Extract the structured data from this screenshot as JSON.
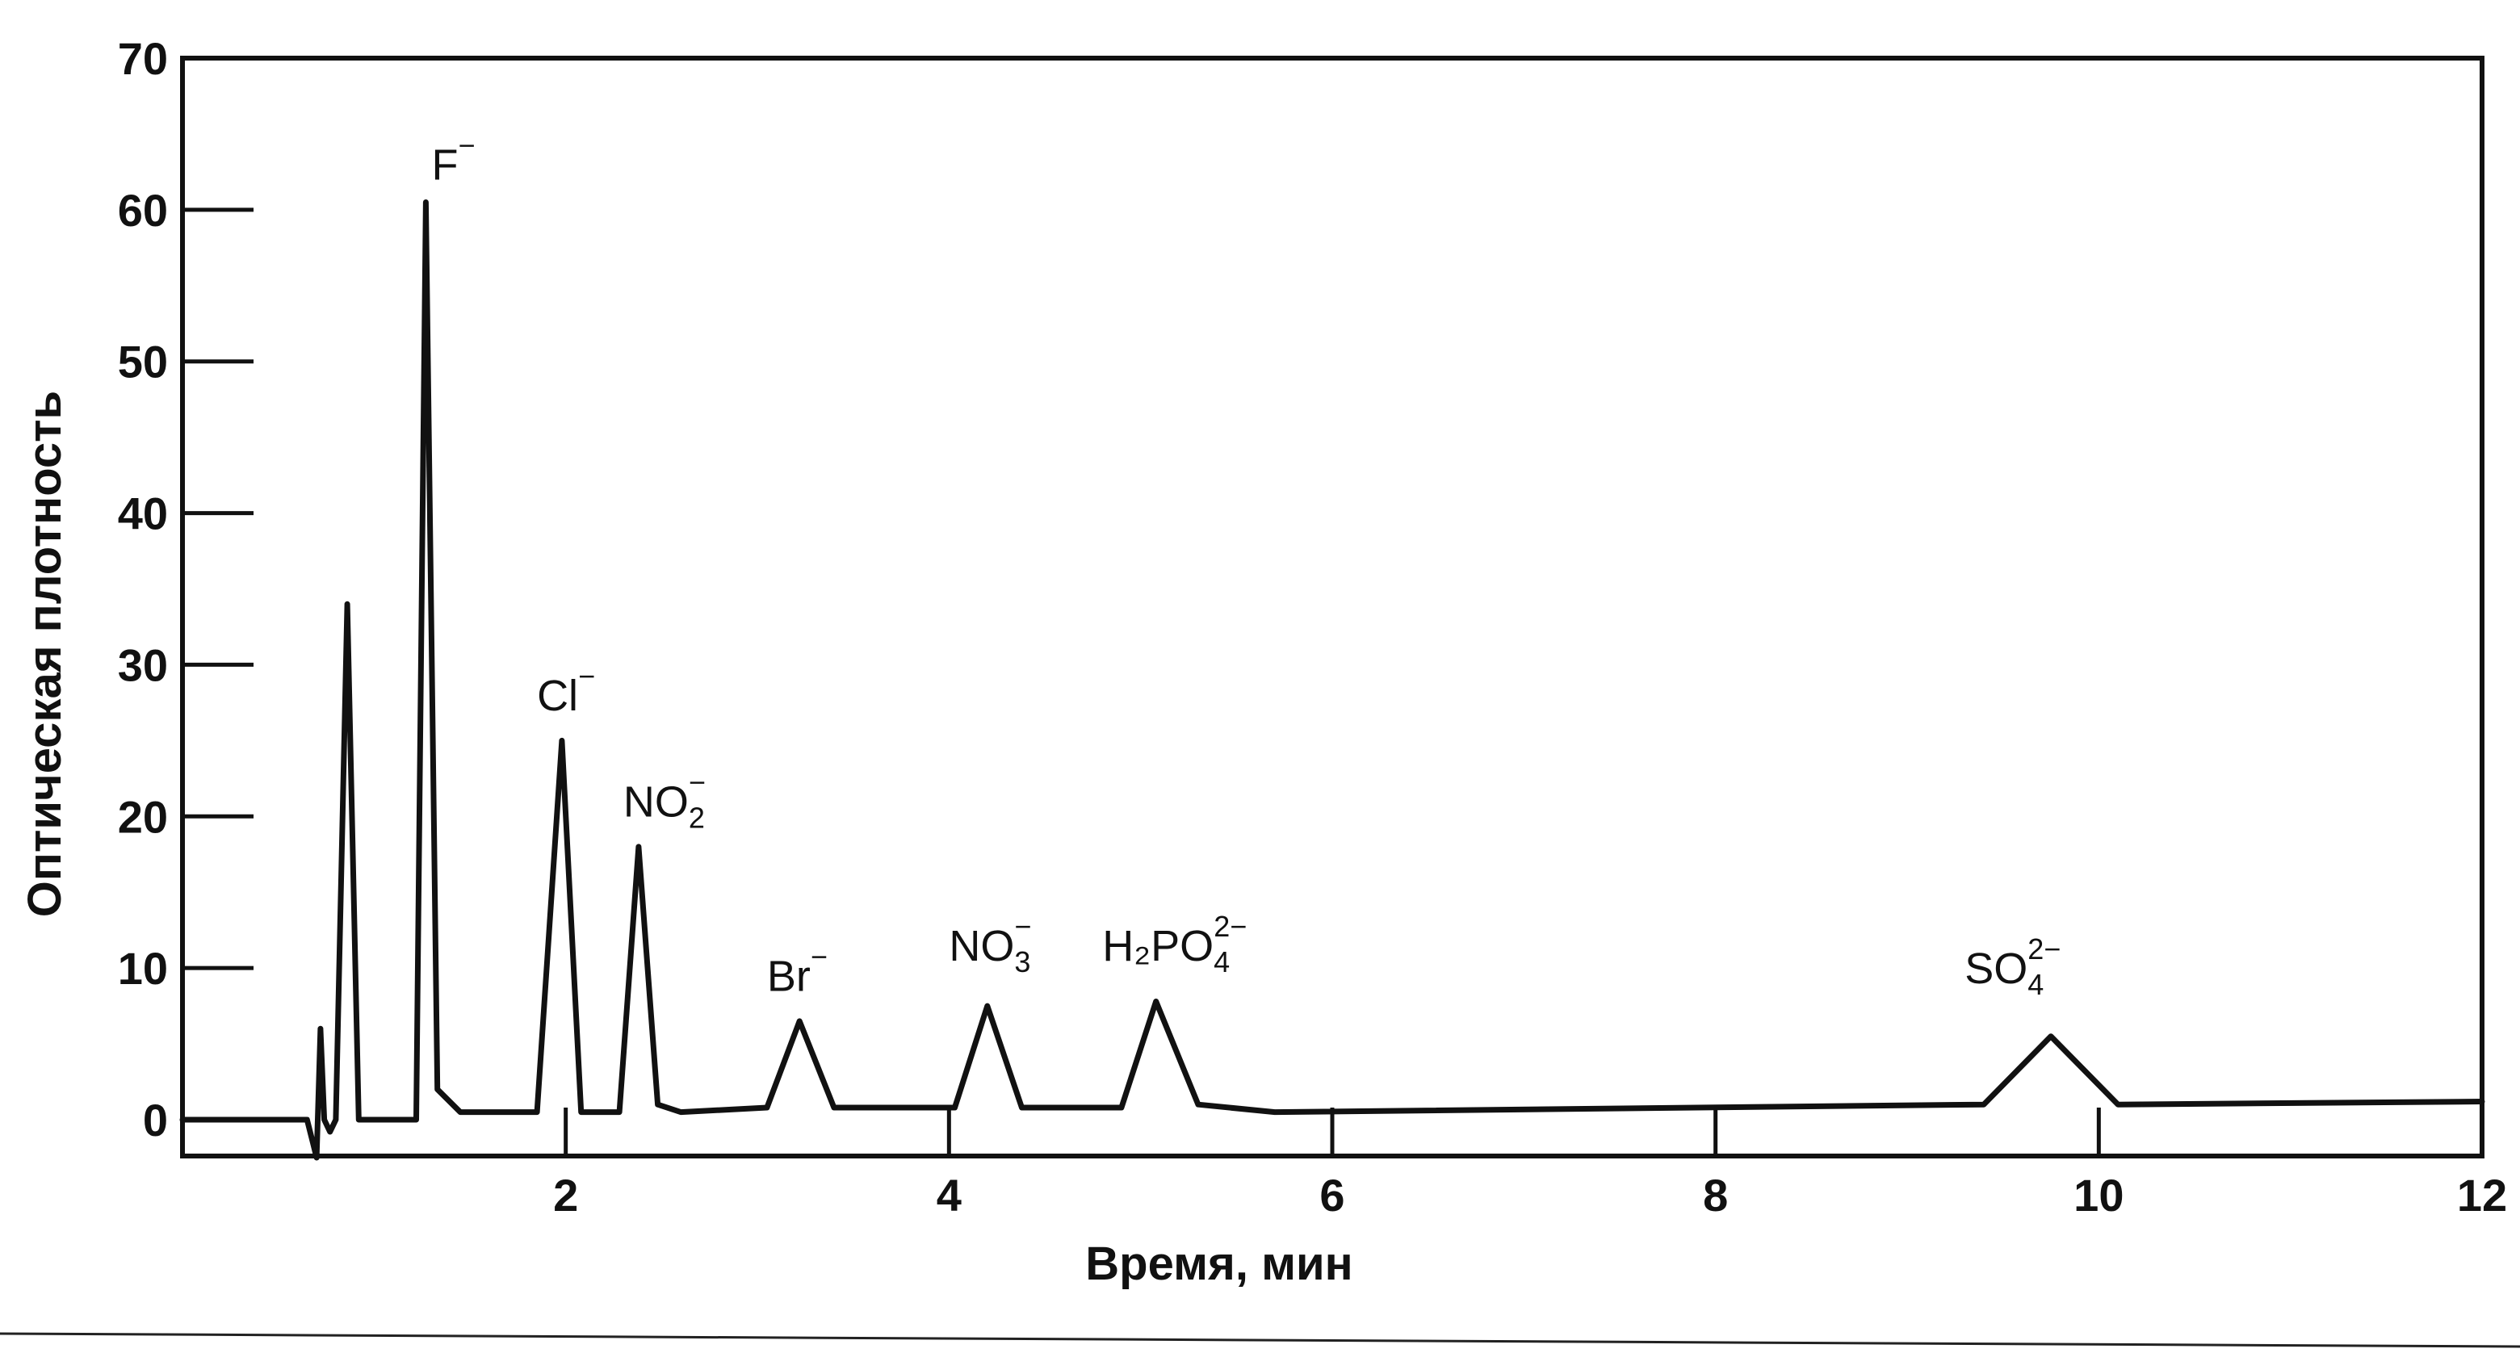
{
  "chart_data": {
    "type": "line",
    "xlabel": "Время, мин",
    "ylabel": "Оптическая плотность",
    "xlim": [
      0,
      12
    ],
    "ylim": [
      0,
      70
    ],
    "x_ticks": [
      2,
      4,
      6,
      8,
      10,
      12
    ],
    "y_ticks": [
      0,
      10,
      20,
      30,
      40,
      50,
      60,
      70
    ],
    "series": [
      {
        "values": [
          {
            "x": 0.0,
            "y": 0.0
          },
          {
            "x": 0.65,
            "y": 0.0
          },
          {
            "x": 0.68,
            "y": -1.5
          },
          {
            "x": 0.7,
            "y": -2.5
          },
          {
            "x": 0.72,
            "y": 6.0
          },
          {
            "x": 0.74,
            "y": 0.0
          },
          {
            "x": 0.77,
            "y": -0.8
          },
          {
            "x": 0.8,
            "y": 0.0
          },
          {
            "x": 0.86,
            "y": 34.0
          },
          {
            "x": 0.92,
            "y": 0.0
          },
          {
            "x": 1.22,
            "y": 0.0
          },
          {
            "x": 1.27,
            "y": 60.5
          },
          {
            "x": 1.33,
            "y": 2.0
          },
          {
            "x": 1.45,
            "y": 0.5
          },
          {
            "x": 1.85,
            "y": 0.5
          },
          {
            "x": 1.98,
            "y": 25.0
          },
          {
            "x": 2.08,
            "y": 0.5
          },
          {
            "x": 2.28,
            "y": 0.5
          },
          {
            "x": 2.38,
            "y": 18.0
          },
          {
            "x": 2.48,
            "y": 1.0
          },
          {
            "x": 2.6,
            "y": 0.5
          },
          {
            "x": 3.05,
            "y": 0.8
          },
          {
            "x": 3.22,
            "y": 6.5
          },
          {
            "x": 3.4,
            "y": 0.8
          },
          {
            "x": 4.03,
            "y": 0.8
          },
          {
            "x": 4.2,
            "y": 7.5
          },
          {
            "x": 4.38,
            "y": 0.8
          },
          {
            "x": 4.9,
            "y": 0.8
          },
          {
            "x": 5.08,
            "y": 7.8
          },
          {
            "x": 5.3,
            "y": 1.0
          },
          {
            "x": 5.7,
            "y": 0.5
          },
          {
            "x": 9.4,
            "y": 1.0
          },
          {
            "x": 9.75,
            "y": 5.5
          },
          {
            "x": 10.1,
            "y": 1.0
          },
          {
            "x": 12.0,
            "y": 1.2
          }
        ]
      }
    ],
    "annotations": [
      {
        "base": "F",
        "sub": "",
        "sup": "−",
        "x": 1.3,
        "y": 62
      },
      {
        "base": "Cl",
        "sub": "",
        "sup": "−",
        "x": 1.85,
        "y": 27
      },
      {
        "base": "NO",
        "sub": "2",
        "sup": "−",
        "x": 2.3,
        "y": 20
      },
      {
        "base": "Br",
        "sub": "",
        "sup": "−",
        "x": 3.05,
        "y": 8.5
      },
      {
        "base": "NO",
        "sub": "3",
        "sup": "−",
        "x": 4.0,
        "y": 10.5
      },
      {
        "base": "H₂PO",
        "sub": "4",
        "sup": "2−",
        "x": 4.8,
        "y": 10.5
      },
      {
        "base": "SO",
        "sub": "4",
        "sup": "2−",
        "x": 9.3,
        "y": 9.0
      }
    ]
  }
}
